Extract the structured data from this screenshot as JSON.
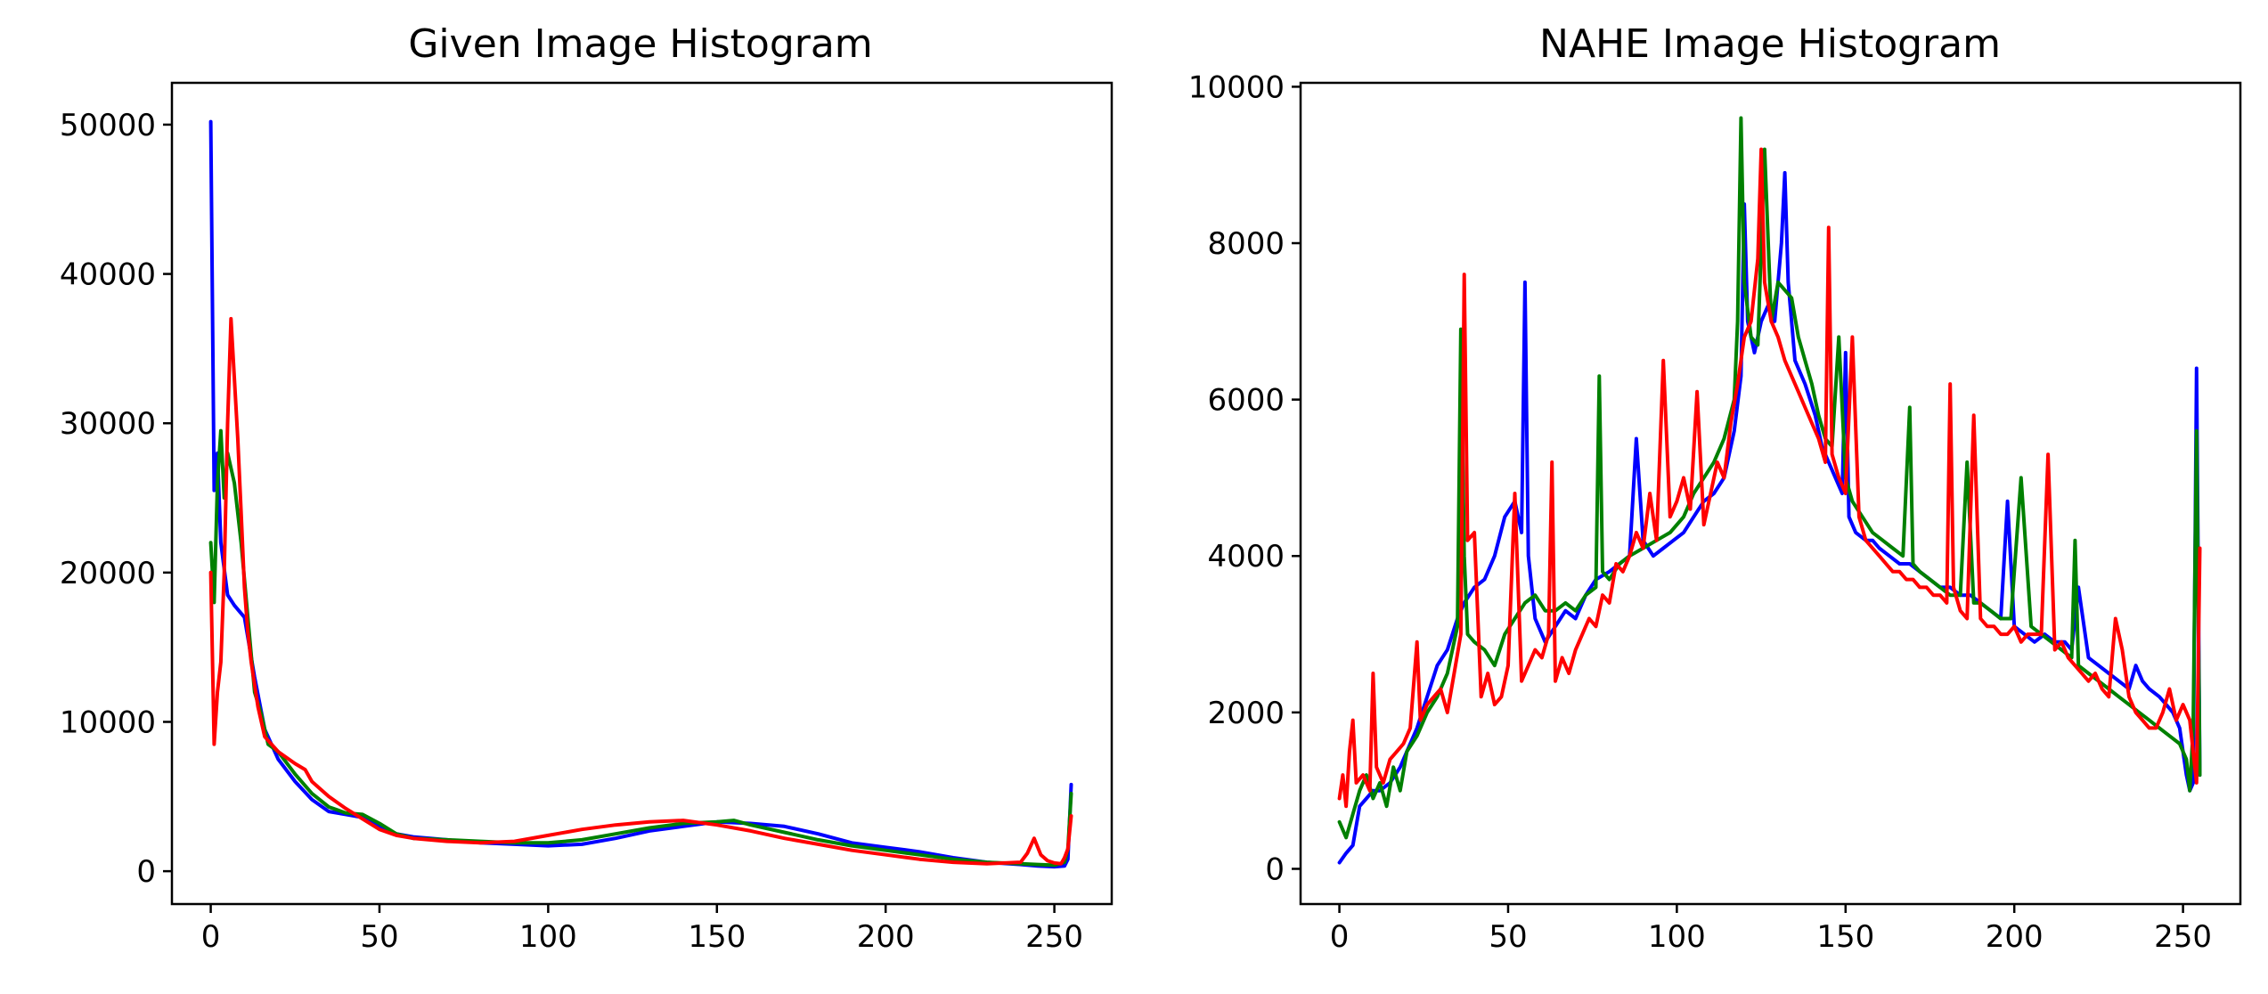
{
  "chart_data": [
    {
      "type": "line",
      "title": "Given Image Histogram",
      "xlabel": "",
      "ylabel": "",
      "xlim": [
        -11.5,
        267
      ],
      "ylim": [
        -2200,
        52800
      ],
      "xticks": [
        0,
        50,
        100,
        150,
        200,
        250
      ],
      "xtick_labels": [
        "0",
        "50",
        "100",
        "150",
        "200",
        "250"
      ],
      "yticks": [
        0,
        10000,
        20000,
        30000,
        40000,
        50000
      ],
      "ytick_labels": [
        "0",
        "10000",
        "20000",
        "30000",
        "40000",
        "50000"
      ],
      "grid": false,
      "legend": "none",
      "series": [
        {
          "color": "#0000ff",
          "x": [
            0,
            1,
            2,
            3,
            5,
            7,
            10,
            13,
            16,
            20,
            25,
            30,
            35,
            40,
            45,
            50,
            55,
            60,
            70,
            80,
            90,
            100,
            110,
            120,
            130,
            140,
            150,
            160,
            170,
            180,
            190,
            200,
            210,
            220,
            230,
            240,
            245,
            250,
            253,
            254,
            255
          ],
          "y": [
            50200,
            25500,
            28000,
            22000,
            18500,
            17800,
            17000,
            13000,
            9500,
            7500,
            6000,
            4800,
            4000,
            3800,
            3600,
            3000,
            2500,
            2300,
            2100,
            1900,
            1800,
            1700,
            1800,
            2200,
            2700,
            3000,
            3300,
            3200,
            3000,
            2500,
            1900,
            1600,
            1300,
            900,
            600,
            450,
            350,
            300,
            350,
            800,
            5800
          ]
        },
        {
          "color": "#008000",
          "x": [
            0,
            1,
            2,
            3,
            4,
            5,
            7,
            9,
            11,
            13,
            15,
            17,
            20,
            25,
            30,
            35,
            40,
            45,
            50,
            55,
            60,
            70,
            80,
            90,
            100,
            110,
            120,
            130,
            140,
            150,
            155,
            160,
            170,
            180,
            190,
            200,
            210,
            220,
            230,
            240,
            245,
            250,
            253,
            254,
            255
          ],
          "y": [
            22000,
            18000,
            26000,
            29500,
            25000,
            28000,
            26000,
            22000,
            17000,
            12000,
            10500,
            8500,
            8000,
            6500,
            5200,
            4300,
            3900,
            3800,
            3200,
            2500,
            2200,
            2100,
            2000,
            1900,
            1900,
            2100,
            2500,
            2900,
            3200,
            3300,
            3400,
            3100,
            2600,
            2100,
            1700,
            1400,
            1100,
            800,
            600,
            500,
            450,
            400,
            600,
            1500,
            5200
          ]
        },
        {
          "color": "#ff0000",
          "x": [
            0,
            1,
            2,
            3,
            4,
            5,
            6,
            7,
            8,
            9,
            10,
            11,
            12,
            14,
            16,
            18,
            20,
            25,
            28,
            30,
            35,
            40,
            45,
            50,
            55,
            60,
            70,
            80,
            90,
            100,
            110,
            120,
            130,
            140,
            150,
            160,
            170,
            180,
            190,
            200,
            210,
            220,
            230,
            240,
            242,
            244,
            246,
            248,
            250,
            252,
            253,
            254,
            255
          ],
          "y": [
            20000,
            8500,
            12000,
            14000,
            20000,
            30000,
            37000,
            33000,
            29000,
            24000,
            19000,
            16000,
            14000,
            11000,
            9000,
            8500,
            8000,
            7200,
            6800,
            6000,
            5000,
            4200,
            3500,
            2800,
            2400,
            2200,
            2000,
            1900,
            2000,
            2400,
            2800,
            3100,
            3300,
            3400,
            3100,
            2700,
            2200,
            1800,
            1400,
            1100,
            800,
            600,
            500,
            600,
            1200,
            2200,
            1100,
            700,
            550,
            500,
            900,
            1500,
            3700
          ]
        }
      ]
    },
    {
      "type": "line",
      "title": "NAHE Image Histogram",
      "xlabel": "",
      "ylabel": "",
      "xlim": [
        -11.5,
        267
      ],
      "ylim": [
        -450,
        10050
      ],
      "xticks": [
        0,
        50,
        100,
        150,
        200,
        250
      ],
      "xtick_labels": [
        "0",
        "50",
        "100",
        "150",
        "200",
        "250"
      ],
      "yticks": [
        0,
        2000,
        4000,
        6000,
        8000,
        10000
      ],
      "ytick_labels": [
        "0",
        "2000",
        "4000",
        "6000",
        "8000",
        "10000"
      ],
      "grid": false,
      "legend": "none",
      "series": [
        {
          "color": "#0000ff",
          "x": [
            0,
            2,
            4,
            6,
            8,
            10,
            12,
            15,
            18,
            20,
            23,
            26,
            29,
            32,
            35,
            37,
            40,
            43,
            46,
            49,
            52,
            54,
            55,
            56,
            58,
            61,
            64,
            67,
            70,
            73,
            76,
            80,
            83,
            86,
            88,
            90,
            93,
            96,
            99,
            102,
            105,
            108,
            111,
            114,
            117,
            119,
            120,
            121,
            123,
            125,
            127,
            129,
            131,
            132,
            133,
            135,
            138,
            141,
            143,
            145,
            147,
            149,
            150,
            151,
            153,
            156,
            158,
            160,
            163,
            166,
            169,
            172,
            175,
            178,
            181,
            184,
            187,
            190,
            193,
            196,
            198,
            200,
            203,
            206,
            209,
            212,
            215,
            217,
            219,
            222,
            225,
            228,
            231,
            234,
            236,
            238,
            240,
            243,
            245,
            247,
            249,
            250,
            251,
            252,
            253,
            254,
            255
          ],
          "y": [
            80,
            200,
            300,
            800,
            900,
            1000,
            1000,
            1100,
            1300,
            1500,
            1800,
            2200,
            2600,
            2800,
            3200,
            3400,
            3600,
            3700,
            4000,
            4500,
            4700,
            4300,
            7500,
            4000,
            3200,
            2900,
            3100,
            3300,
            3200,
            3500,
            3700,
            3800,
            3900,
            4000,
            5500,
            4200,
            4000,
            4100,
            4200,
            4300,
            4500,
            4700,
            4800,
            5000,
            5600,
            6300,
            8500,
            7000,
            6600,
            7000,
            7200,
            7000,
            8000,
            8900,
            7500,
            6500,
            6200,
            5800,
            5400,
            5200,
            5000,
            4800,
            6600,
            4500,
            4300,
            4200,
            4200,
            4100,
            4000,
            3900,
            3900,
            3800,
            3700,
            3600,
            3600,
            3500,
            3500,
            3400,
            3300,
            3200,
            4700,
            3100,
            3000,
            2900,
            3000,
            2900,
            2900,
            2800,
            3600,
            2700,
            2600,
            2500,
            2400,
            2300,
            2600,
            2400,
            2300,
            2200,
            2100,
            2000,
            1800,
            1500,
            1200,
            1000,
            1100,
            6400,
            1200
          ]
        },
        {
          "color": "#008000",
          "x": [
            0,
            2,
            4,
            6,
            8,
            10,
            12,
            14,
            16,
            18,
            20,
            23,
            26,
            29,
            32,
            35,
            36,
            37,
            38,
            40,
            43,
            46,
            49,
            52,
            55,
            58,
            61,
            64,
            67,
            70,
            73,
            76,
            77,
            78,
            80,
            83,
            86,
            90,
            94,
            98,
            102,
            105,
            108,
            111,
            114,
            117,
            118,
            119,
            120,
            122,
            124,
            126,
            128,
            130,
            132,
            134,
            136,
            138,
            140,
            142,
            144,
            146,
            148,
            150,
            152,
            155,
            158,
            161,
            164,
            167,
            169,
            170,
            172,
            175,
            178,
            181,
            184,
            186,
            188,
            190,
            193,
            196,
            199,
            202,
            205,
            208,
            211,
            214,
            217,
            218,
            219,
            222,
            225,
            228,
            231,
            234,
            237,
            240,
            243,
            246,
            249,
            251,
            252,
            253,
            254,
            255
          ],
          "y": [
            600,
            400,
            700,
            1000,
            1200,
            900,
            1100,
            800,
            1300,
            1000,
            1500,
            1700,
            2000,
            2200,
            2500,
            3100,
            6900,
            4000,
            3000,
            2900,
            2800,
            2600,
            3000,
            3200,
            3400,
            3500,
            3300,
            3300,
            3400,
            3300,
            3500,
            3600,
            6300,
            3800,
            3700,
            3900,
            4000,
            4100,
            4200,
            4300,
            4500,
            4800,
            5000,
            5200,
            5500,
            6000,
            7000,
            9600,
            7500,
            6800,
            6700,
            9200,
            7000,
            7500,
            7400,
            7300,
            6800,
            6500,
            6200,
            5800,
            5500,
            5400,
            6800,
            5000,
            4700,
            4500,
            4300,
            4200,
            4100,
            4000,
            5900,
            3900,
            3800,
            3700,
            3600,
            3500,
            3500,
            5200,
            3400,
            3400,
            3300,
            3200,
            3200,
            5000,
            3100,
            3000,
            2900,
            2800,
            2700,
            4200,
            2600,
            2500,
            2400,
            2300,
            2200,
            2100,
            2000,
            1900,
            1800,
            1700,
            1600,
            1400,
            1000,
            1800,
            5600,
            1200
          ]
        },
        {
          "color": "#ff0000",
          "x": [
            0,
            1,
            2,
            3,
            4,
            5,
            7,
            9,
            10,
            11,
            13,
            15,
            17,
            19,
            21,
            23,
            24,
            26,
            28,
            30,
            32,
            34,
            36,
            37,
            38,
            40,
            42,
            44,
            46,
            48,
            50,
            52,
            54,
            56,
            58,
            60,
            62,
            63,
            64,
            66,
            68,
            70,
            72,
            74,
            76,
            78,
            80,
            82,
            84,
            86,
            88,
            90,
            92,
            94,
            96,
            98,
            100,
            102,
            104,
            106,
            108,
            110,
            112,
            114,
            116,
            118,
            120,
            122,
            124,
            125,
            126,
            128,
            130,
            132,
            134,
            136,
            138,
            140,
            142,
            144,
            145,
            146,
            148,
            150,
            152,
            154,
            156,
            158,
            160,
            162,
            164,
            166,
            168,
            170,
            172,
            174,
            176,
            178,
            180,
            181,
            182,
            184,
            186,
            188,
            190,
            192,
            194,
            196,
            198,
            200,
            202,
            204,
            206,
            208,
            210,
            212,
            214,
            216,
            218,
            220,
            222,
            224,
            226,
            228,
            230,
            232,
            234,
            236,
            238,
            240,
            242,
            244,
            246,
            248,
            250,
            252,
            253,
            254,
            255
          ],
          "y": [
            900,
            1200,
            800,
            1500,
            1900,
            1100,
            1200,
            1000,
            2500,
            1300,
            1100,
            1400,
            1500,
            1600,
            1800,
            2900,
            1900,
            2100,
            2200,
            2300,
            2000,
            2500,
            3000,
            7600,
            4200,
            4300,
            2200,
            2500,
            2100,
            2200,
            2600,
            4800,
            2400,
            2600,
            2800,
            2700,
            3000,
            5200,
            2400,
            2700,
            2500,
            2800,
            3000,
            3200,
            3100,
            3500,
            3400,
            3900,
            3800,
            4000,
            4300,
            4100,
            4800,
            4200,
            6500,
            4500,
            4700,
            5000,
            4600,
            6100,
            4400,
            4800,
            5200,
            5000,
            5700,
            6200,
            6800,
            7000,
            7800,
            9200,
            7500,
            7000,
            6800,
            6500,
            6300,
            6100,
            5900,
            5700,
            5500,
            5200,
            8200,
            5300,
            5000,
            4800,
            6800,
            4500,
            4200,
            4100,
            4000,
            3900,
            3800,
            3800,
            3700,
            3700,
            3600,
            3600,
            3500,
            3500,
            3400,
            6200,
            3600,
            3300,
            3200,
            5800,
            3200,
            3100,
            3100,
            3000,
            3000,
            3100,
            2900,
            3000,
            3000,
            3000,
            5300,
            2800,
            2900,
            2700,
            2600,
            2500,
            2400,
            2500,
            2300,
            2200,
            3200,
            2800,
            2200,
            2000,
            1900,
            1800,
            1800,
            2000,
            2300,
            1900,
            2100,
            1900,
            1500,
            1100,
            4100
          ]
        }
      ]
    }
  ]
}
